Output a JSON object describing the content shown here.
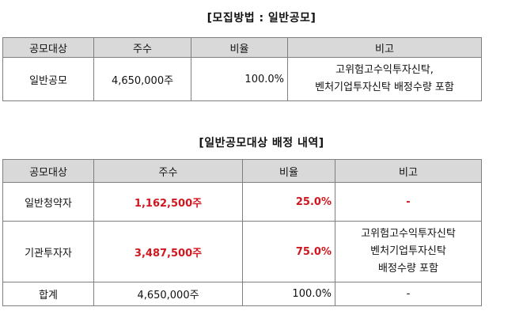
{
  "table1": {
    "title": "[모집방법 : 일반공모]",
    "headers": [
      "공모대상",
      "주수",
      "비율",
      "비고"
    ],
    "row": {
      "target": "일반공모",
      "shares": "4,650,000주",
      "ratio": "100.0%",
      "note_line1": "고위험고수익투자신탁,",
      "note_line2": "벤처기업투자신탁 배정수량 포함"
    }
  },
  "table2": {
    "title": "[일반공모대상 배정 내역]",
    "headers": [
      "공모대상",
      "주수",
      "비율",
      "비고"
    ],
    "rows": [
      {
        "target": "일반청약자",
        "shares": "1,162,500주",
        "ratio": "25.0%",
        "note": "-"
      },
      {
        "target": "기관투자자",
        "shares": "3,487,500주",
        "ratio": "75.0%",
        "note_line1": "고위험고수익투자신탁",
        "note_line2": "벤처기업투자신탁",
        "note_line3": "배정수량 포함"
      },
      {
        "target": "합계",
        "shares": "4,650,000주",
        "ratio": "100.0%",
        "note": "-"
      }
    ]
  },
  "colors": {
    "header_bg": "#d9d9d9",
    "highlight_red": "#d0161e",
    "border": "#7f7f7f"
  }
}
